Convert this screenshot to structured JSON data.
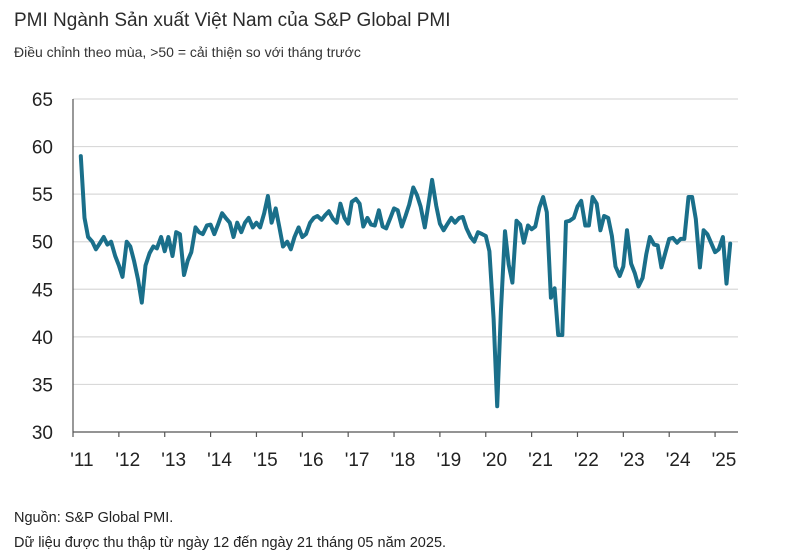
{
  "header": {
    "title": "PMI Ngành Sản xuất Việt Nam của S&P Global PMI",
    "subtitle": "Điều chỉnh theo mùa, >50 = cải thiện so với tháng trước"
  },
  "footer": {
    "source": "Nguồn: S&P Global PMI.",
    "note": "Dữ liệu được thu thập từ ngày 12 đến ngày 21 tháng 05 năm 2025."
  },
  "colors": {
    "line": "#1a6f8a",
    "grid": "#d9d9d9",
    "axis": "#555555"
  },
  "chart_data": {
    "type": "line",
    "title": "PMI Ngành Sản xuất Việt Nam của S&P Global PMI",
    "xlabel": "",
    "ylabel": "",
    "ylim": [
      30,
      65
    ],
    "yticks": [
      30,
      35,
      40,
      45,
      50,
      55,
      60,
      65
    ],
    "xticks": [
      "'11",
      "'12",
      "'13",
      "'14",
      "'15",
      "'16",
      "'17",
      "'18",
      "'19",
      "'20",
      "'21",
      "'22",
      "'23",
      "'24",
      "'25"
    ],
    "grid": true,
    "series": [
      {
        "values": [
          [
            2011.17,
            59.0
          ],
          [
            2011.25,
            52.5
          ],
          [
            2011.33,
            50.5
          ],
          [
            2011.42,
            50.0
          ],
          [
            2011.5,
            49.2
          ],
          [
            2011.58,
            49.8
          ],
          [
            2011.67,
            50.5
          ],
          [
            2011.75,
            49.7
          ],
          [
            2011.83,
            50.0
          ],
          [
            2011.92,
            48.5
          ],
          [
            2012.0,
            47.5
          ],
          [
            2012.08,
            46.3
          ],
          [
            2012.17,
            50.0
          ],
          [
            2012.25,
            49.5
          ],
          [
            2012.33,
            48.0
          ],
          [
            2012.42,
            46.0
          ],
          [
            2012.5,
            43.6
          ],
          [
            2012.58,
            47.5
          ],
          [
            2012.67,
            48.8
          ],
          [
            2012.75,
            49.5
          ],
          [
            2012.83,
            49.3
          ],
          [
            2012.92,
            50.5
          ],
          [
            2013.0,
            49.0
          ],
          [
            2013.08,
            50.5
          ],
          [
            2013.17,
            48.5
          ],
          [
            2013.25,
            51.0
          ],
          [
            2013.33,
            50.8
          ],
          [
            2013.42,
            46.5
          ],
          [
            2013.5,
            48.0
          ],
          [
            2013.58,
            48.9
          ],
          [
            2013.67,
            51.5
          ],
          [
            2013.75,
            51.0
          ],
          [
            2013.83,
            50.8
          ],
          [
            2013.92,
            51.7
          ],
          [
            2014.0,
            51.8
          ],
          [
            2014.08,
            50.8
          ],
          [
            2014.17,
            51.9
          ],
          [
            2014.25,
            53.0
          ],
          [
            2014.33,
            52.5
          ],
          [
            2014.42,
            52.0
          ],
          [
            2014.5,
            50.5
          ],
          [
            2014.58,
            52.0
          ],
          [
            2014.67,
            51.0
          ],
          [
            2014.75,
            52.0
          ],
          [
            2014.83,
            52.5
          ],
          [
            2014.92,
            51.5
          ],
          [
            2015.0,
            52.0
          ],
          [
            2015.08,
            51.5
          ],
          [
            2015.17,
            53.0
          ],
          [
            2015.25,
            54.8
          ],
          [
            2015.33,
            52.0
          ],
          [
            2015.42,
            53.5
          ],
          [
            2015.5,
            51.5
          ],
          [
            2015.58,
            49.5
          ],
          [
            2015.67,
            50.0
          ],
          [
            2015.75,
            49.2
          ],
          [
            2015.83,
            50.5
          ],
          [
            2015.92,
            51.5
          ],
          [
            2016.0,
            50.5
          ],
          [
            2016.08,
            50.8
          ],
          [
            2016.17,
            52.0
          ],
          [
            2016.25,
            52.5
          ],
          [
            2016.33,
            52.7
          ],
          [
            2016.42,
            52.3
          ],
          [
            2016.5,
            52.8
          ],
          [
            2016.58,
            53.2
          ],
          [
            2016.67,
            52.4
          ],
          [
            2016.75,
            52.0
          ],
          [
            2016.83,
            54.0
          ],
          [
            2016.92,
            52.5
          ],
          [
            2017.0,
            51.9
          ],
          [
            2017.08,
            54.2
          ],
          [
            2017.17,
            54.5
          ],
          [
            2017.25,
            54.0
          ],
          [
            2017.33,
            51.6
          ],
          [
            2017.42,
            52.5
          ],
          [
            2017.5,
            51.8
          ],
          [
            2017.58,
            51.7
          ],
          [
            2017.67,
            53.3
          ],
          [
            2017.75,
            51.6
          ],
          [
            2017.83,
            51.4
          ],
          [
            2017.92,
            52.5
          ],
          [
            2018.0,
            53.5
          ],
          [
            2018.08,
            53.3
          ],
          [
            2018.17,
            51.6
          ],
          [
            2018.25,
            52.7
          ],
          [
            2018.33,
            53.9
          ],
          [
            2018.42,
            55.7
          ],
          [
            2018.5,
            54.9
          ],
          [
            2018.58,
            53.7
          ],
          [
            2018.67,
            51.5
          ],
          [
            2018.75,
            53.9
          ],
          [
            2018.83,
            56.5
          ],
          [
            2018.92,
            53.8
          ],
          [
            2019.0,
            51.9
          ],
          [
            2019.08,
            51.2
          ],
          [
            2019.17,
            51.9
          ],
          [
            2019.25,
            52.5
          ],
          [
            2019.33,
            52.0
          ],
          [
            2019.42,
            52.5
          ],
          [
            2019.5,
            52.6
          ],
          [
            2019.58,
            51.4
          ],
          [
            2019.67,
            50.5
          ],
          [
            2019.75,
            50.0
          ],
          [
            2019.83,
            51.0
          ],
          [
            2019.92,
            50.8
          ],
          [
            2020.0,
            50.6
          ],
          [
            2020.08,
            49.0
          ],
          [
            2020.17,
            41.9
          ],
          [
            2020.25,
            32.7
          ],
          [
            2020.33,
            42.7
          ],
          [
            2020.42,
            51.1
          ],
          [
            2020.5,
            47.6
          ],
          [
            2020.58,
            45.7
          ],
          [
            2020.67,
            52.2
          ],
          [
            2020.75,
            51.8
          ],
          [
            2020.83,
            49.9
          ],
          [
            2020.92,
            51.7
          ],
          [
            2021.0,
            51.3
          ],
          [
            2021.08,
            51.6
          ],
          [
            2021.17,
            53.6
          ],
          [
            2021.25,
            54.7
          ],
          [
            2021.33,
            53.1
          ],
          [
            2021.42,
            44.1
          ],
          [
            2021.5,
            45.1
          ],
          [
            2021.58,
            40.2
          ],
          [
            2021.67,
            40.2
          ],
          [
            2021.75,
            52.1
          ],
          [
            2021.83,
            52.2
          ],
          [
            2021.92,
            52.5
          ],
          [
            2022.0,
            53.7
          ],
          [
            2022.08,
            54.3
          ],
          [
            2022.17,
            51.7
          ],
          [
            2022.25,
            51.7
          ],
          [
            2022.33,
            54.7
          ],
          [
            2022.42,
            54.0
          ],
          [
            2022.5,
            51.2
          ],
          [
            2022.58,
            52.7
          ],
          [
            2022.67,
            52.5
          ],
          [
            2022.75,
            50.6
          ],
          [
            2022.83,
            47.4
          ],
          [
            2022.92,
            46.4
          ],
          [
            2023.0,
            47.4
          ],
          [
            2023.08,
            51.2
          ],
          [
            2023.17,
            47.7
          ],
          [
            2023.25,
            46.7
          ],
          [
            2023.33,
            45.3
          ],
          [
            2023.42,
            46.2
          ],
          [
            2023.5,
            48.7
          ],
          [
            2023.58,
            50.5
          ],
          [
            2023.67,
            49.7
          ],
          [
            2023.75,
            49.6
          ],
          [
            2023.83,
            47.3
          ],
          [
            2023.92,
            48.9
          ],
          [
            2024.0,
            50.3
          ],
          [
            2024.08,
            50.4
          ],
          [
            2024.17,
            49.9
          ],
          [
            2024.25,
            50.3
          ],
          [
            2024.33,
            50.3
          ],
          [
            2024.42,
            54.7
          ],
          [
            2024.5,
            54.7
          ],
          [
            2024.58,
            52.4
          ],
          [
            2024.67,
            47.3
          ],
          [
            2024.75,
            51.2
          ],
          [
            2024.83,
            50.8
          ],
          [
            2024.92,
            49.8
          ],
          [
            2025.0,
            48.9
          ],
          [
            2025.08,
            49.2
          ],
          [
            2025.17,
            50.5
          ],
          [
            2025.25,
            45.6
          ],
          [
            2025.33,
            49.8
          ]
        ]
      }
    ]
  }
}
